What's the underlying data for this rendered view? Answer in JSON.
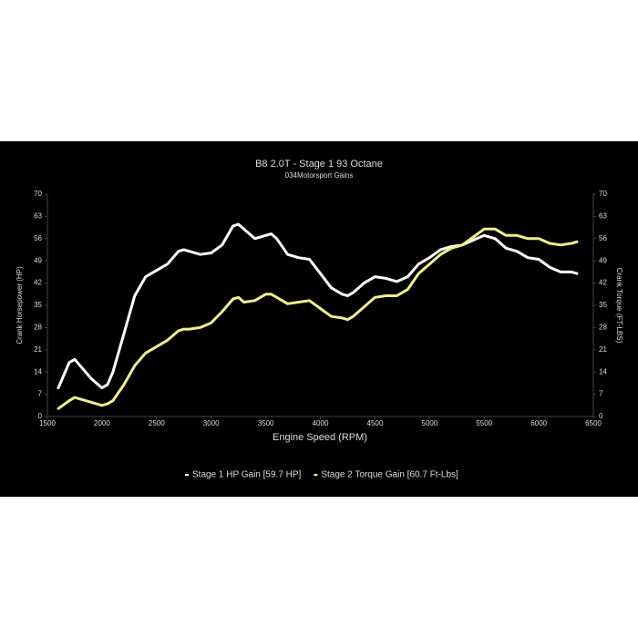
{
  "chart_data": {
    "type": "line",
    "title": "B8 2.0T - Stage 1 93 Octane",
    "subtitle": "034Motorsport Gains",
    "x_label": "Engine Speed (RPM)",
    "y_label": "Crank Horsepower (HP)",
    "y2_label": "Crank Torque (FT-LBS)",
    "x": [
      1600,
      1700,
      1750,
      1800,
      1900,
      2000,
      2050,
      2100,
      2200,
      2300,
      2400,
      2500,
      2600,
      2700,
      2750,
      2800,
      2900,
      3000,
      3100,
      3200,
      3250,
      3300,
      3400,
      3500,
      3550,
      3600,
      3700,
      3800,
      3900,
      4000,
      4100,
      4200,
      4250,
      4300,
      4400,
      4500,
      4600,
      4700,
      4800,
      4900,
      5000,
      5100,
      5200,
      5300,
      5400,
      5500,
      5600,
      5700,
      5800,
      5900,
      6000,
      6100,
      6200,
      6300,
      6350
    ],
    "series": [
      {
        "name": "Stage 1 HP Gain [59.7 HP]",
        "color": "#ffffff",
        "values": [
          9,
          17,
          18,
          16,
          12,
          9,
          10,
          14,
          26,
          38,
          44,
          46,
          48,
          52,
          52.5,
          52,
          51,
          51.5,
          54,
          60,
          60.5,
          59,
          56,
          57,
          57.5,
          56,
          51,
          50,
          49.5,
          45,
          40.5,
          38.5,
          38,
          39,
          42,
          44,
          43.5,
          42.5,
          44,
          48,
          50,
          52.5,
          53.5,
          54,
          55.5,
          57,
          56,
          53,
          52,
          50,
          49.5,
          47,
          45.5,
          45.5,
          45
        ]
      },
      {
        "name": "Stage 2 Torque Gain [60.7 Ft-Lbs]",
        "color": "#eef08a",
        "axis": "y2",
        "values": [
          2.5,
          5,
          6,
          5.5,
          4.5,
          3.5,
          4,
          5,
          10,
          16,
          20,
          22,
          24,
          27,
          27.5,
          27.5,
          28,
          29.5,
          33,
          37,
          37.5,
          36,
          36.5,
          38.5,
          38.5,
          37.5,
          35.5,
          36,
          36.5,
          34,
          31.5,
          31,
          30.5,
          31.5,
          34.5,
          37.5,
          38,
          38,
          40,
          45,
          48,
          51,
          53,
          54,
          56.5,
          59,
          59,
          57,
          57,
          56,
          56,
          54.5,
          54,
          54.5,
          55
        ]
      }
    ],
    "xlim": [
      1500,
      6500
    ],
    "xticks": [
      1500,
      2000,
      2500,
      3000,
      3500,
      4000,
      4500,
      5000,
      5500,
      6000,
      6500
    ],
    "ylim": [
      0,
      70
    ],
    "yticks": [
      0,
      7,
      14,
      21,
      28,
      35,
      42,
      49,
      56,
      63,
      70
    ],
    "y2lim": [
      0,
      70
    ],
    "y2ticks": [
      0,
      7,
      14,
      21,
      28,
      35,
      42,
      49,
      56,
      63,
      70
    ],
    "legend": "bottom"
  }
}
